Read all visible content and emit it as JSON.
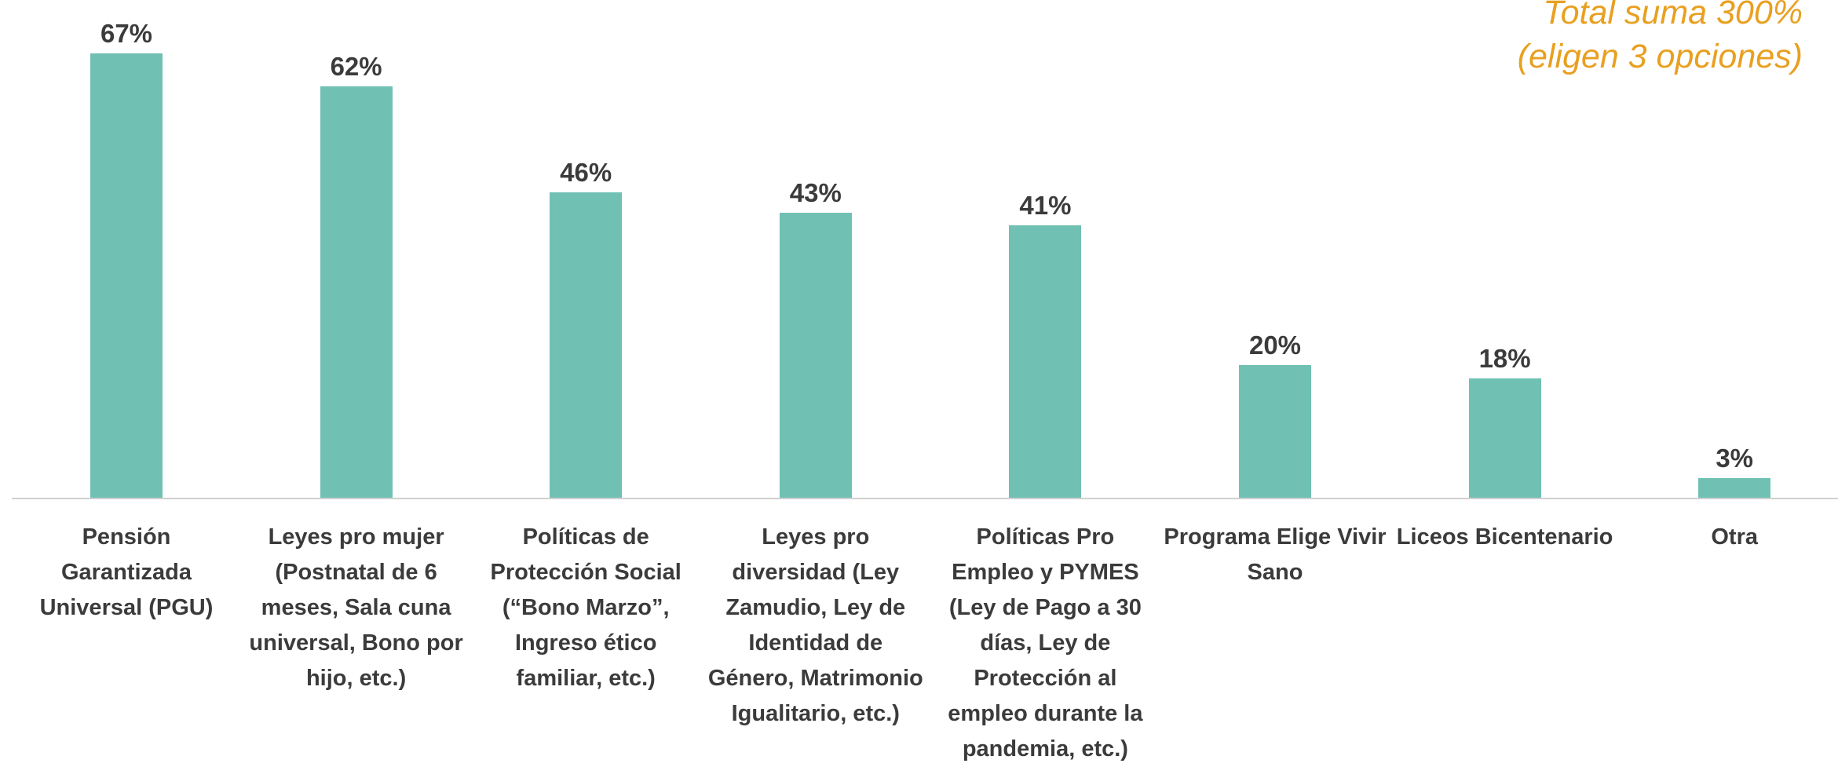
{
  "chart_data": {
    "type": "bar",
    "categories": [
      "Pensión Garantizada Universal (PGU)",
      "Leyes pro mujer (Postnatal de 6 meses, Sala cuna universal, Bono por hijo, etc.)",
      "Políticas de Protección Social (“Bono Marzo”, Ingreso ético familiar, etc.)",
      "Leyes pro diversidad (Ley Zamudio, Ley de Identidad de Género, Matrimonio Igualitario, etc.)",
      "Políticas Pro Empleo y PYMES (Ley de Pago a 30 días, Ley de Protección al empleo durante la pandemia, etc.)",
      "Programa Elige Vivir Sano",
      "Liceos Bicentenario",
      "Otra"
    ],
    "values": [
      67,
      62,
      46,
      43,
      41,
      20,
      18,
      3
    ],
    "value_labels": [
      "67%",
      "62%",
      "46%",
      "43%",
      "41%",
      "20%",
      "18%",
      "3%"
    ],
    "color": "#70c1b3",
    "ylim": [
      0,
      75
    ],
    "annotation": [
      "Total suma 300%",
      "(eligen 3 opciones)"
    ]
  }
}
